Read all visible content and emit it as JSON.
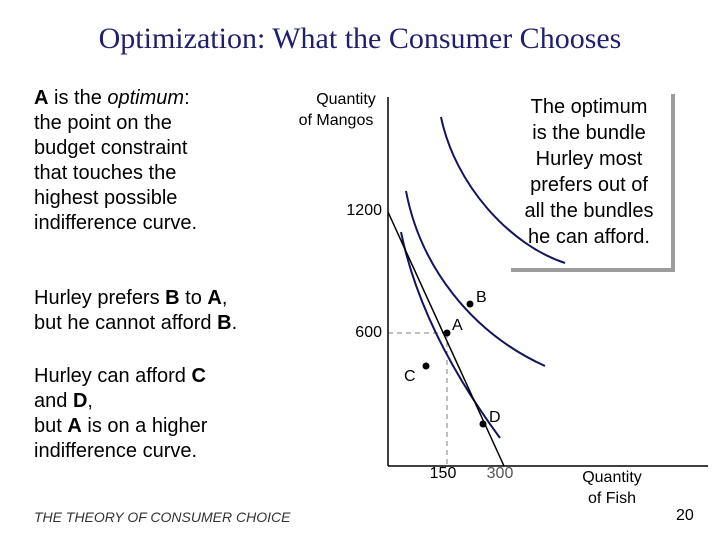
{
  "slide": {
    "title": "Optimization:  What the Consumer Chooses",
    "footer": "THE THEORY OF CONSUMER CHOICE",
    "page_number": "20"
  },
  "text_a": {
    "line1": {
      "bold": "A",
      "normal": " is the ",
      "italic": "optimum",
      "end": ":"
    },
    "lines": [
      "the point on the",
      "budget constraint",
      "that touches the",
      "highest possible",
      "indifference curve."
    ]
  },
  "text_b": {
    "line1": {
      "start": "Hurley prefers ",
      "b1": "B",
      "mid": " to ",
      "b2": "A",
      "end": ","
    },
    "line2": {
      "start": "but he cannot afford ",
      "b": "B",
      "end": "."
    }
  },
  "text_cd": {
    "line1": {
      "start": "Hurley can afford ",
      "b": "C"
    },
    "line2": {
      "start": "and ",
      "b": "D",
      "end": ","
    },
    "line3": {
      "start": "but ",
      "b": "A",
      "end": " is on a higher"
    },
    "line4": "indifference curve."
  },
  "callout": {
    "lines": [
      "The optimum",
      "is the bundle",
      "Hurley most",
      "prefers out of",
      "all the bundles",
      "he can afford."
    ]
  },
  "diagram": {
    "y_axis_label": [
      "Quantity",
      "of Mangos"
    ],
    "x_axis_label": [
      "Quantity",
      "of Fish"
    ],
    "y_ticks": [
      "1200",
      "600"
    ],
    "x_ticks": [
      "150",
      "300"
    ],
    "points": {
      "A": "A",
      "B": "B",
      "C": "C",
      "D": "D"
    },
    "colors": {
      "indifference": "#14145e",
      "budget": "#000000",
      "guide": "#808080"
    }
  }
}
